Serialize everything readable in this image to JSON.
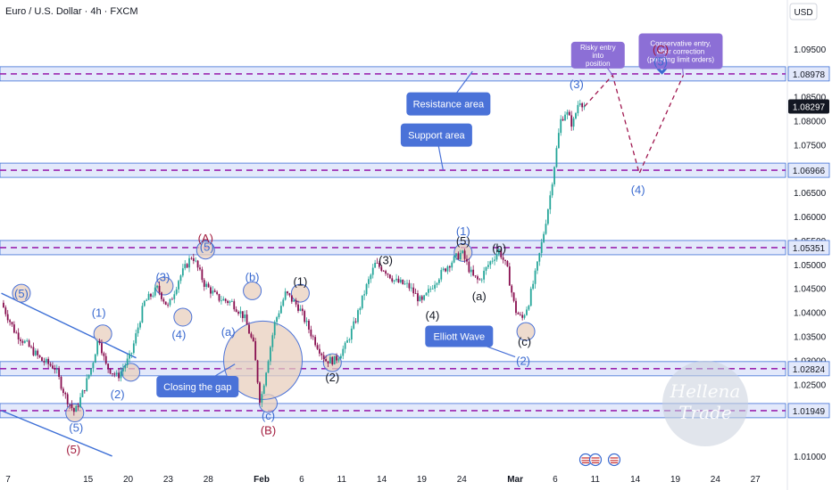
{
  "chart_data": {
    "type": "candlestick",
    "title": "Euro / U.S. Dollar · 4h · FXCM",
    "currency": "USD",
    "ylim": [
      1.0085,
      1.0985
    ],
    "y_ticks": [
      "1.09500",
      "1.08500",
      "1.08000",
      "1.07500",
      "1.06500",
      "1.06000",
      "1.05500",
      "1.05000",
      "1.04500",
      "1.04000",
      "1.03500",
      "1.03000",
      "1.02500",
      "1.01940",
      "1.01000"
    ],
    "x_ticks": [
      {
        "label": "7",
        "session": 0
      },
      {
        "label": "15",
        "session": 6
      },
      {
        "label": "20",
        "session": 9
      },
      {
        "label": "23",
        "session": 12
      },
      {
        "label": "28",
        "session": 15
      },
      {
        "label": "Feb",
        "session": 19
      },
      {
        "label": "6",
        "session": 22
      },
      {
        "label": "11",
        "session": 25
      },
      {
        "label": "14",
        "session": 28
      },
      {
        "label": "19",
        "session": 31
      },
      {
        "label": "24",
        "session": 34
      },
      {
        "label": "Mar",
        "session": 38
      },
      {
        "label": "6",
        "session": 41
      },
      {
        "label": "11",
        "session": 44
      },
      {
        "label": "14",
        "session": 47
      },
      {
        "label": "19",
        "session": 50
      },
      {
        "label": "24",
        "session": 53
      },
      {
        "label": "27",
        "session": 56
      }
    ],
    "levels": [
      {
        "price": 1.08978,
        "label": "1.08978",
        "kind": "resistance"
      },
      {
        "price": 1.06966,
        "label": "1.06966",
        "kind": "support"
      },
      {
        "price": 1.05351,
        "label": "1.05351",
        "kind": "zone"
      },
      {
        "price": 1.02824,
        "label": "1.02824",
        "kind": "zone"
      },
      {
        "price": 1.01949,
        "label": "1.01949",
        "kind": "zone"
      }
    ],
    "last_price": {
      "price": 1.08297,
      "label": "1.08297"
    },
    "price_path": [
      {
        "s": -0.5,
        "p": 1.042
      },
      {
        "s": 0.5,
        "p": 1.036
      },
      {
        "s": 1.5,
        "p": 1.033
      },
      {
        "s": 2.5,
        "p": 1.03
      },
      {
        "s": 3.5,
        "p": 1.0285
      },
      {
        "s": 4.3,
        "p": 1.0225
      },
      {
        "s": 5.0,
        "p": 1.019
      },
      {
        "s": 5.7,
        "p": 1.024
      },
      {
        "s": 6.3,
        "p": 1.029
      },
      {
        "s": 6.8,
        "p": 1.035
      },
      {
        "s": 7.3,
        "p": 1.029
      },
      {
        "s": 8.2,
        "p": 1.0265
      },
      {
        "s": 9.2,
        "p": 1.031
      },
      {
        "s": 10.2,
        "p": 1.042
      },
      {
        "s": 11.2,
        "p": 1.045
      },
      {
        "s": 12.0,
        "p": 1.041
      },
      {
        "s": 12.8,
        "p": 1.047
      },
      {
        "s": 13.8,
        "p": 1.052
      },
      {
        "s": 14.7,
        "p": 1.046
      },
      {
        "s": 15.7,
        "p": 1.043
      },
      {
        "s": 16.8,
        "p": 1.042
      },
      {
        "s": 17.7,
        "p": 1.039
      },
      {
        "s": 18.4,
        "p": 1.033
      },
      {
        "s": 18.9,
        "p": 1.021
      },
      {
        "s": 19.4,
        "p": 1.029
      },
      {
        "s": 20.0,
        "p": 1.038
      },
      {
        "s": 20.8,
        "p": 1.044
      },
      {
        "s": 21.8,
        "p": 1.041
      },
      {
        "s": 22.8,
        "p": 1.035
      },
      {
        "s": 23.8,
        "p": 1.03
      },
      {
        "s": 24.5,
        "p": 1.03
      },
      {
        "s": 25.3,
        "p": 1.033
      },
      {
        "s": 26.0,
        "p": 1.038
      },
      {
        "s": 26.8,
        "p": 1.045
      },
      {
        "s": 27.5,
        "p": 1.05
      },
      {
        "s": 28.2,
        "p": 1.049
      },
      {
        "s": 29.0,
        "p": 1.0465
      },
      {
        "s": 30.0,
        "p": 1.0455
      },
      {
        "s": 31.0,
        "p": 1.042
      },
      {
        "s": 32.0,
        "p": 1.0465
      },
      {
        "s": 33.0,
        "p": 1.05
      },
      {
        "s": 34.0,
        "p": 1.0525
      },
      {
        "s": 34.8,
        "p": 1.0475
      },
      {
        "s": 35.3,
        "p": 1.0465
      },
      {
        "s": 36.0,
        "p": 1.05
      },
      {
        "s": 36.8,
        "p": 1.053
      },
      {
        "s": 37.4,
        "p": 1.049
      },
      {
        "s": 38.0,
        "p": 1.0405
      },
      {
        "s": 38.5,
        "p": 1.0385
      },
      {
        "s": 39.0,
        "p": 1.042
      },
      {
        "s": 39.6,
        "p": 1.049
      },
      {
        "s": 40.1,
        "p": 1.056
      },
      {
        "s": 40.6,
        "p": 1.064
      },
      {
        "s": 41.0,
        "p": 1.072
      },
      {
        "s": 41.4,
        "p": 1.08
      },
      {
        "s": 41.8,
        "p": 1.082
      },
      {
        "s": 42.3,
        "p": 1.079
      },
      {
        "s": 42.8,
        "p": 1.0845
      },
      {
        "s": 43.2,
        "p": 1.083
      }
    ],
    "projection": [
      {
        "s": 43.2,
        "p": 1.083
      },
      {
        "s": 45.3,
        "p": 1.0895
      },
      {
        "s": 47.3,
        "p": 1.069
      },
      {
        "s": 50.6,
        "p": 1.0895
      }
    ],
    "trendlines": [
      {
        "from": {
          "s": -0.5,
          "p": 1.044
        },
        "to": {
          "s": 9.6,
          "p": 1.0305
        }
      },
      {
        "from": {
          "s": -0.5,
          "p": 1.0195
        },
        "to": {
          "s": 7.8,
          "p": 1.01
        }
      }
    ],
    "wave_labels": [
      {
        "text": "(5)",
        "s": 1.0,
        "p": 1.044,
        "color": "blue",
        "circle": true
      },
      {
        "text": "(1)",
        "s": 6.8,
        "p": 1.04,
        "color": "blue"
      },
      {
        "text": "(2)",
        "s": 8.2,
        "p": 1.023,
        "color": "blue"
      },
      {
        "text": "(3)",
        "s": 11.6,
        "p": 1.0475,
        "color": "blue"
      },
      {
        "text": "(4)",
        "s": 12.8,
        "p": 1.0355,
        "color": "blue"
      },
      {
        "text": "(5)",
        "s": 5.1,
        "p": 1.016,
        "color": "blue"
      },
      {
        "text": "(5)",
        "s": 4.9,
        "p": 1.0115,
        "color": "crimson"
      },
      {
        "text": "(A)",
        "s": 14.8,
        "p": 1.0555,
        "color": "crimson"
      },
      {
        "text": "(5)",
        "s": 14.9,
        "p": 1.0538,
        "color": "blue"
      },
      {
        "text": "(b)",
        "s": 18.3,
        "p": 1.0475,
        "color": "blue"
      },
      {
        "text": "(a)",
        "s": 16.5,
        "p": 1.036,
        "color": "blue"
      },
      {
        "text": "(c)",
        "s": 19.5,
        "p": 1.0185,
        "color": "blue"
      },
      {
        "text": "(B)",
        "s": 19.5,
        "p": 1.0155,
        "color": "crimson"
      },
      {
        "text": "(1)",
        "s": 21.9,
        "p": 1.0465,
        "color": "black"
      },
      {
        "text": "(2)",
        "s": 24.3,
        "p": 1.0265,
        "color": "black"
      },
      {
        "text": "(3)",
        "s": 28.3,
        "p": 1.051,
        "color": "black"
      },
      {
        "text": "(4)",
        "s": 31.8,
        "p": 1.0395,
        "color": "black"
      },
      {
        "text": "(5)",
        "s": 34.1,
        "p": 1.055,
        "color": "black"
      },
      {
        "text": "(1)",
        "s": 34.1,
        "p": 1.057,
        "color": "blue"
      },
      {
        "text": "(a)",
        "s": 35.3,
        "p": 1.0435,
        "color": "black"
      },
      {
        "text": "(b)",
        "s": 36.8,
        "p": 1.0535,
        "color": "black"
      },
      {
        "text": "(c)",
        "s": 38.7,
        "p": 1.034,
        "color": "black"
      },
      {
        "text": "(2)",
        "s": 38.6,
        "p": 1.03,
        "color": "blue"
      },
      {
        "text": "(3)",
        "s": 42.6,
        "p": 1.0877,
        "color": "blue"
      },
      {
        "text": "(4)",
        "s": 47.2,
        "p": 1.0657,
        "color": "blue"
      },
      {
        "text": "(5)",
        "s": 48.9,
        "p": 1.0925,
        "color": "blue"
      },
      {
        "text": "(C)",
        "s": 48.9,
        "p": 1.095,
        "color": "crimson"
      }
    ],
    "circles": [
      {
        "s": 1.0,
        "p": 1.044,
        "r": 10
      },
      {
        "s": 7.1,
        "p": 1.0355,
        "r": 10
      },
      {
        "s": 9.2,
        "p": 1.0275,
        "r": 10
      },
      {
        "s": 11.7,
        "p": 1.0455,
        "r": 10
      },
      {
        "s": 13.1,
        "p": 1.039,
        "r": 10
      },
      {
        "s": 14.8,
        "p": 1.053,
        "r": 10
      },
      {
        "s": 18.3,
        "p": 1.0445,
        "r": 10
      },
      {
        "s": 21.9,
        "p": 1.044,
        "r": 10
      },
      {
        "s": 24.3,
        "p": 1.0295,
        "r": 10
      },
      {
        "s": 34.1,
        "p": 1.0525,
        "r": 10
      },
      {
        "s": 38.8,
        "p": 1.036,
        "r": 10
      },
      {
        "s": 5.0,
        "p": 1.019,
        "r": 10
      },
      {
        "s": 19.5,
        "p": 1.021,
        "r": 10
      },
      {
        "s": 19.1,
        "p": 1.03,
        "r": 44
      }
    ],
    "callouts": [
      {
        "text": "Resistance area",
        "s": 33.0,
        "p": 1.0835,
        "w": 94,
        "h": 26,
        "pointer": {
          "s": 34.8,
          "p": 1.0903
        }
      },
      {
        "text": "Support area",
        "s": 32.1,
        "p": 1.077,
        "w": 80,
        "h": 26,
        "pointer": {
          "s": 32.6,
          "p": 1.0697
        }
      },
      {
        "text": "Elliott Wave",
        "s": 33.8,
        "p": 1.035,
        "w": 76,
        "h": 24,
        "pointer": {
          "s": 38.0,
          "p": 1.0307
        }
      },
      {
        "text": "Closing the gap",
        "s": 14.2,
        "p": 1.0245,
        "w": 92,
        "h": 24,
        "pointer": {
          "s": 17.0,
          "p": 1.0292
        }
      },
      {
        "text": "Risky entry into position",
        "s": 44.2,
        "p": 1.0937,
        "w": 60,
        "h": 30,
        "pointer": {
          "s": 45.3,
          "p": 1.0895
        },
        "small": true
      },
      {
        "text": "Conservative entry, after correction (pending limit orders)",
        "s": 50.4,
        "p": 1.0945,
        "w": 94,
        "h": 40,
        "pointer": {
          "s": 50.6,
          "p": 1.0895
        },
        "small": true
      }
    ],
    "watermark": [
      "Hellena",
      "Trade"
    ]
  },
  "colors": {
    "band_fill": "#e3e9fb",
    "band_border": "#3d6fd6",
    "band_dash": "#9c27b0",
    "projection": "#a01850",
    "bull": "#26a69a",
    "bear": "#880e4f",
    "callout": "#4a72d8",
    "callout_purple": "#8c6fd6",
    "wave_blue": "#3a6ad0",
    "wave_crimson": "#a21a3c",
    "wave_black": "#131722",
    "circle_fill": "#e8cfbd",
    "circle_stroke": "#4a72d8",
    "last_price_bg": "#131722"
  }
}
